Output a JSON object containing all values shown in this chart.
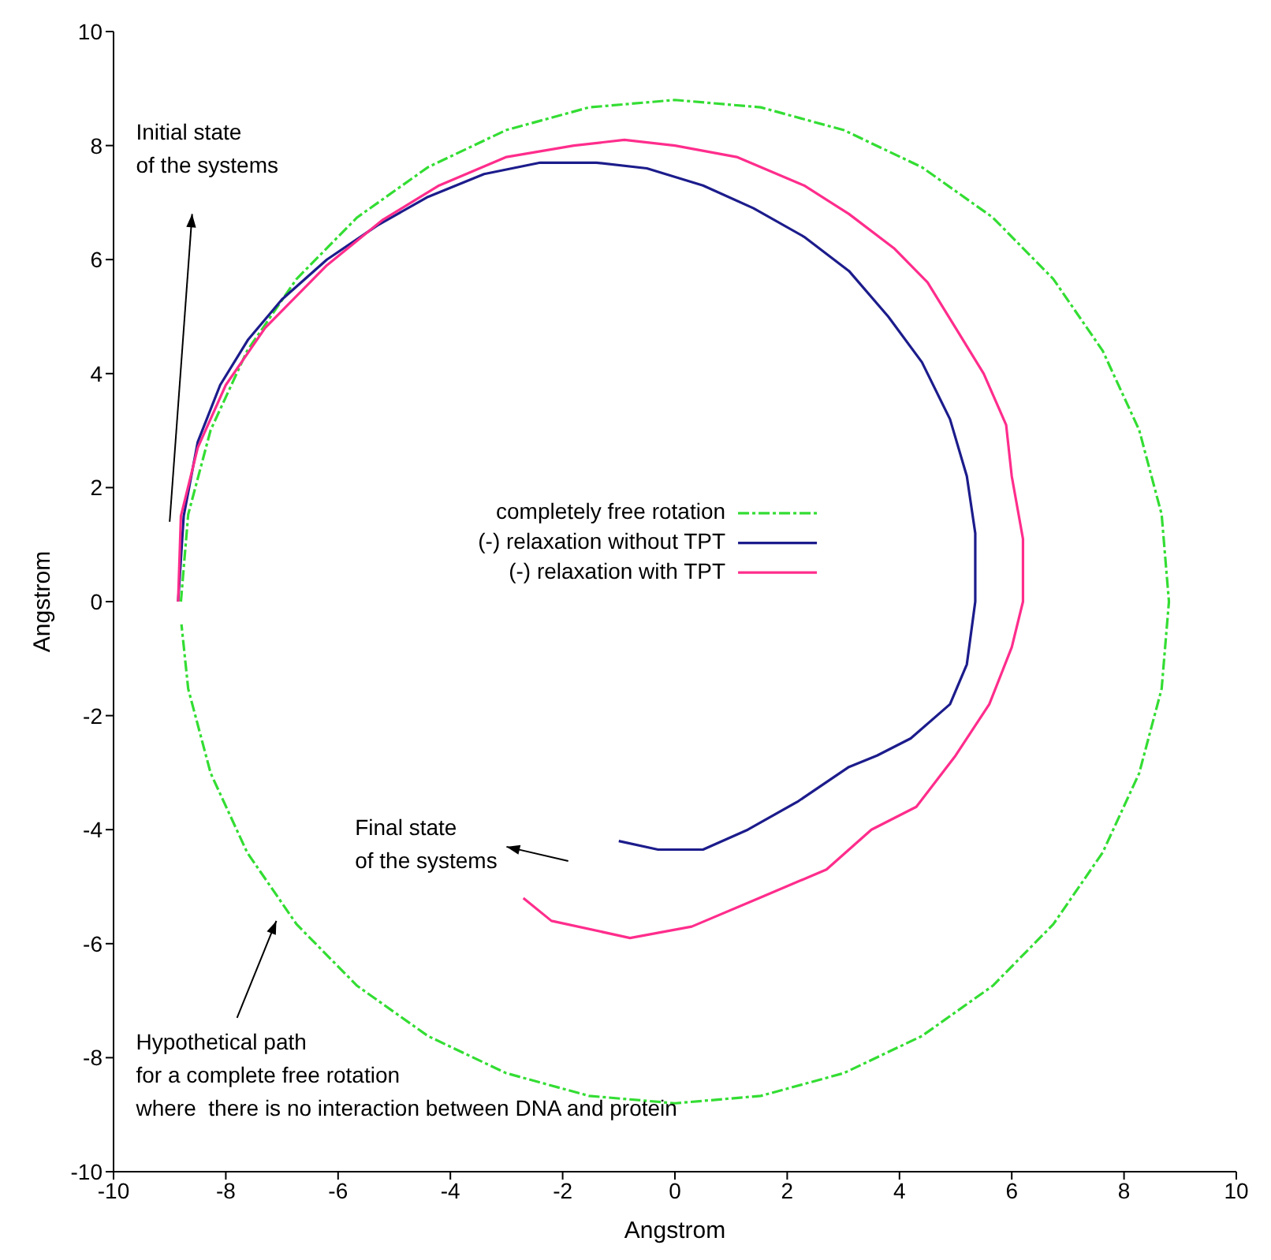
{
  "chart_data": {
    "type": "line",
    "xlabel": "Angstrom",
    "ylabel": "Angstrom",
    "xlim": [
      -10,
      10
    ],
    "ylim": [
      -10,
      10
    ],
    "xticks": [
      -10,
      -8,
      -6,
      -4,
      -2,
      0,
      2,
      4,
      6,
      8,
      10
    ],
    "yticks": [
      -10,
      -8,
      -6,
      -4,
      -2,
      0,
      2,
      4,
      6,
      8,
      10
    ],
    "grid": false,
    "legend": "right",
    "marker": "none",
    "series": [
      {
        "name": "completely free rotation",
        "color": "#33dd33",
        "line_style": "dashed",
        "x": [
          -8.8,
          -8.67,
          -8.27,
          -7.62,
          -6.74,
          -5.66,
          -4.4,
          -3.01,
          -1.53,
          0,
          1.53,
          3.01,
          4.4,
          5.66,
          6.74,
          7.62,
          8.27,
          8.67,
          8.8,
          8.67,
          8.27,
          7.62,
          6.74,
          5.66,
          4.4,
          3.01,
          1.53,
          0,
          -1.53,
          -3.01,
          -4.4,
          -5.66,
          -6.74,
          -7.62,
          -8.27,
          -8.67,
          -8.79
        ],
        "values": [
          0,
          1.53,
          3.01,
          4.4,
          5.66,
          6.74,
          7.62,
          8.27,
          8.67,
          8.8,
          8.67,
          8.27,
          7.62,
          6.74,
          5.66,
          4.4,
          3.01,
          1.53,
          0,
          -1.53,
          -3.01,
          -4.4,
          -5.66,
          -6.74,
          -7.62,
          -8.27,
          -8.67,
          -8.8,
          -8.67,
          -8.27,
          -7.62,
          -6.74,
          -5.66,
          -4.4,
          -3.01,
          -1.53,
          -0.4
        ]
      },
      {
        "name": "(-) relaxation without TPT",
        "color": "#1c1c8c",
        "line_style": "solid",
        "x": [
          -8.85,
          -8.75,
          -8.5,
          -8.1,
          -7.6,
          -7.0,
          -6.2,
          -5.3,
          -4.4,
          -3.4,
          -2.4,
          -1.4,
          -0.5,
          0.5,
          1.4,
          2.3,
          3.1,
          3.8,
          4.4,
          4.9,
          5.2,
          5.35,
          5.35,
          5.2,
          4.9,
          4.2,
          3.6,
          3.1,
          2.2,
          1.3,
          0.5,
          -0.3,
          -1.0
        ],
        "values": [
          0,
          1.5,
          2.8,
          3.8,
          4.6,
          5.3,
          6.0,
          6.6,
          7.1,
          7.5,
          7.7,
          7.7,
          7.6,
          7.3,
          6.9,
          6.4,
          5.8,
          5.0,
          4.2,
          3.2,
          2.2,
          1.2,
          0,
          -1.1,
          -1.8,
          -2.4,
          -2.7,
          -2.9,
          -3.5,
          -4.0,
          -4.35,
          -4.35,
          -4.2
        ]
      },
      {
        "name": "(-) relaxation with TPT",
        "color": "#ff2d8c",
        "line_style": "solid",
        "x": [
          -8.85,
          -8.8,
          -8.5,
          -8.0,
          -7.3,
          -6.2,
          -5.2,
          -4.2,
          -3.0,
          -1.8,
          -0.9,
          0,
          1.1,
          2.3,
          3.1,
          3.9,
          4.5,
          5.0,
          5.5,
          5.9,
          6.0,
          6.2,
          6.2,
          6.0,
          5.6,
          5.0,
          4.3,
          3.5,
          2.7,
          1.5,
          0.3,
          -0.8,
          -2.2,
          -2.7
        ],
        "values": [
          0,
          1.5,
          2.7,
          3.8,
          4.8,
          5.9,
          6.7,
          7.3,
          7.8,
          8.0,
          8.1,
          8.0,
          7.8,
          7.3,
          6.8,
          6.2,
          5.6,
          4.8,
          4.0,
          3.1,
          2.2,
          1.1,
          0,
          -0.8,
          -1.8,
          -2.7,
          -3.6,
          -4.0,
          -4.7,
          -5.2,
          -5.7,
          -5.9,
          -5.6,
          -5.2
        ]
      }
    ],
    "annotations": [
      "Initial state\nof the systems",
      "Final state\nof the systems",
      "Hypothetical path\nfor a complete free rotation\nwhere  there is no interaction between DNA and protein"
    ]
  }
}
